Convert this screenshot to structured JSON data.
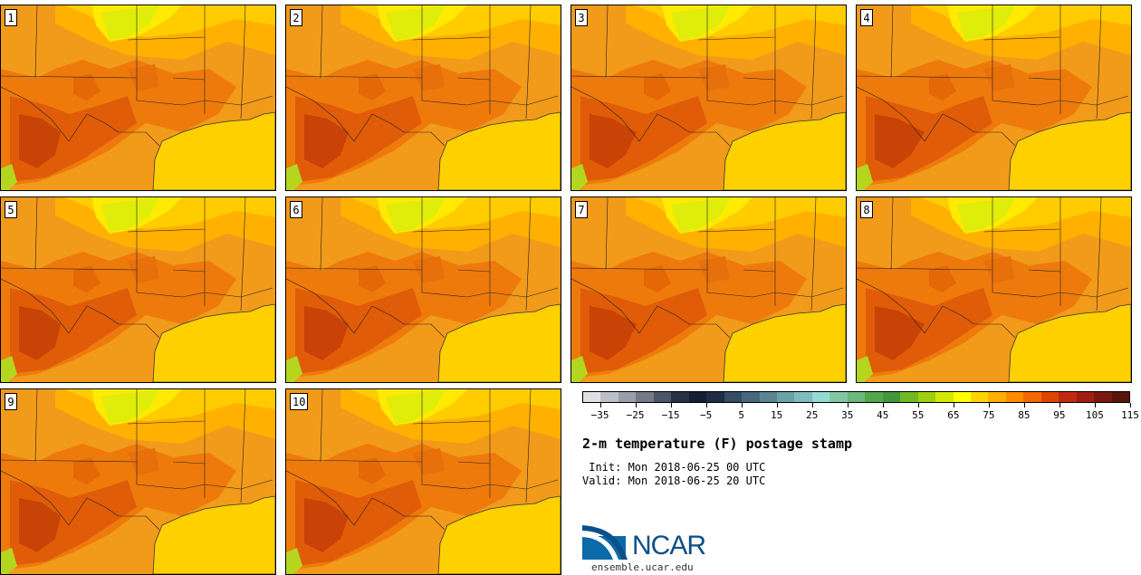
{
  "title": "2-m temperature (F) postage stamp",
  "init_text": " Init: Mon 2018-06-25 00 UTC",
  "valid_text": "Valid: Mon 2018-06-25 20 UTC",
  "members": [
    "1",
    "2",
    "3",
    "4",
    "5",
    "6",
    "7",
    "8",
    "9",
    "10"
  ],
  "colorbar": {
    "colors": [
      "#dfe0e6",
      "#bcbec8",
      "#9a9eaa",
      "#737a88",
      "#4c5668",
      "#283246",
      "#141e34",
      "#1e2c44",
      "#344c64",
      "#48667c",
      "#5a8492",
      "#6aa2a8",
      "#7ebcbe",
      "#94dad2",
      "#80c8a4",
      "#6ab87a",
      "#52a848",
      "#40983a",
      "#70b824",
      "#9ed010",
      "#d2e800",
      "#ffff00",
      "#ffd400",
      "#ffb000",
      "#ff8c00",
      "#f46800",
      "#de4400",
      "#c02a10",
      "#9e1e10",
      "#7a1810",
      "#5a1408"
    ],
    "ticks": [
      "-35",
      "-25",
      "-15",
      "-5",
      "5",
      "15",
      "25",
      "35",
      "45",
      "55",
      "65",
      "75",
      "85",
      "95",
      "105",
      "115"
    ]
  },
  "logo": {
    "name": "NCAR",
    "url": "ensemble.ucar.edu"
  }
}
